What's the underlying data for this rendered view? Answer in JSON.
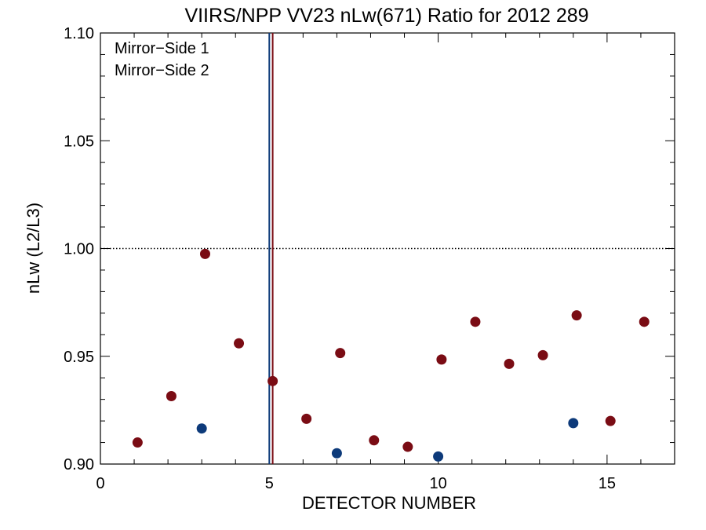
{
  "chart_data": {
    "type": "scatter",
    "title": "VIIRS/NPP VV23 nLw(671) Ratio for 2012 289",
    "xlabel": "DETECTOR NUMBER",
    "ylabel": "nLw (L2/L3)",
    "xlim": [
      0,
      17
    ],
    "ylim": [
      0.9,
      1.1
    ],
    "x_ticks": [
      0,
      5,
      10,
      15
    ],
    "x_tick_labels": [
      "0",
      "5",
      "10",
      "15"
    ],
    "y_ticks": [
      0.9,
      0.95,
      1.0,
      1.05,
      1.1
    ],
    "y_tick_labels": [
      "0.90",
      "0.95",
      "1.00",
      "1.05",
      "1.10"
    ],
    "reference_line": {
      "y": 1.0,
      "style": "dotted"
    },
    "vertical_lines": [
      {
        "x": 5.0,
        "series": "Mirror−Side 1"
      },
      {
        "x": 5.1,
        "series": "Mirror−Side 2"
      }
    ],
    "legend_position": "top-left",
    "series": [
      {
        "name": "Mirror−Side 1",
        "color": "#0d3a7a",
        "points": [
          [
            3,
            0.9165
          ],
          [
            7,
            0.905
          ],
          [
            10,
            0.9035
          ],
          [
            14,
            0.919
          ]
        ]
      },
      {
        "name": "Mirror−Side 2",
        "color": "#7a0c14",
        "points": [
          [
            1.1,
            0.91
          ],
          [
            2.1,
            0.9315
          ],
          [
            3.1,
            0.9975
          ],
          [
            4.1,
            0.956
          ],
          [
            5.1,
            0.9385
          ],
          [
            6.1,
            0.921
          ],
          [
            7.1,
            0.9515
          ],
          [
            8.1,
            0.911
          ],
          [
            9.1,
            0.908
          ],
          [
            10.1,
            0.9485
          ],
          [
            11.1,
            0.966
          ],
          [
            12.1,
            0.9465
          ],
          [
            13.1,
            0.9505
          ],
          [
            14.1,
            0.969
          ],
          [
            15.1,
            0.92
          ],
          [
            16.1,
            0.966
          ]
        ]
      }
    ]
  }
}
